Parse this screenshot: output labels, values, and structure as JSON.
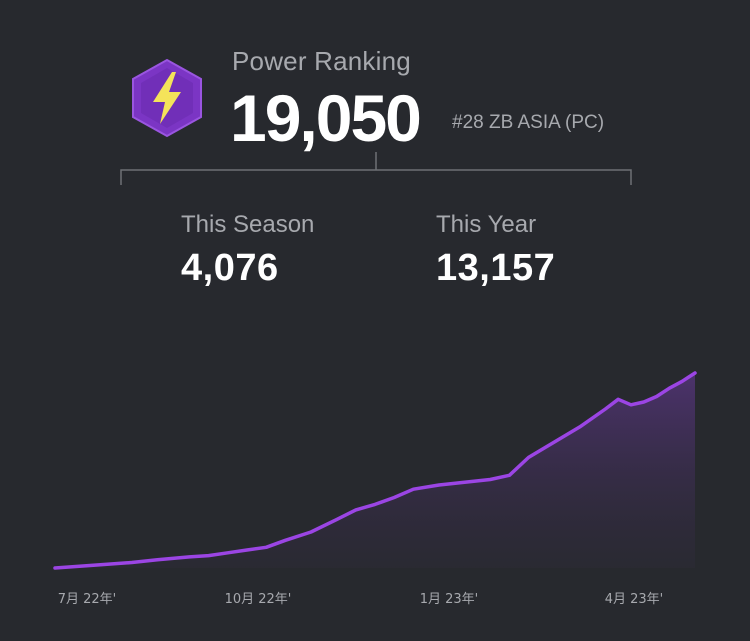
{
  "header": {
    "title": "Power Ranking",
    "value": "19,050",
    "rank": "#28 ZB ASIA (PC)",
    "badge_icon": "lightning-bolt-icon",
    "badge_color": "#7b35c4",
    "bolt_color": "#f4e35a"
  },
  "stats": {
    "season": {
      "label": "This Season",
      "value": "4,076"
    },
    "year": {
      "label": "This Year",
      "value": "13,157"
    }
  },
  "colors": {
    "background": "#27292e",
    "line": "#9b45e4"
  },
  "chart_data": {
    "type": "area",
    "x_tick_labels": [
      "7月 22年'",
      "10月 22年'",
      "1月 23年'",
      "4月 23年'"
    ],
    "x": [
      0,
      6,
      12,
      16,
      21,
      24,
      27,
      30,
      33,
      36,
      40,
      44,
      47,
      50,
      53,
      56,
      60,
      64,
      68,
      71,
      74,
      78,
      82,
      86,
      88,
      90,
      92,
      94,
      96,
      98,
      99,
      100
    ],
    "values": [
      0,
      2,
      4,
      6,
      8,
      9,
      11,
      13,
      15,
      20,
      26,
      35,
      42,
      46,
      51,
      57,
      60,
      62,
      64,
      67,
      80,
      91,
      102,
      115,
      122,
      118,
      120,
      124,
      130,
      135,
      138,
      141
    ],
    "ylabel": "",
    "xlabel": "",
    "grid": false
  }
}
